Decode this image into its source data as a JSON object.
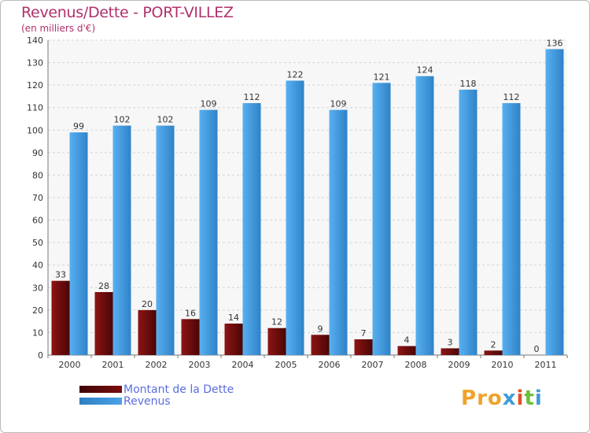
{
  "header": {
    "title": "Revenus/Dette - PORT-VILLEZ",
    "subtitle": "(en milliers d'€)"
  },
  "logo": {
    "text": "Proxiti"
  },
  "colors": {
    "dette": "#7a0c0c",
    "revenus": "#4aa3e8",
    "title": "#b0306b",
    "legend_text": "#5a6ee0",
    "grid": "#d4d4d4"
  },
  "chart_data": {
    "type": "bar",
    "categories": [
      "2000",
      "2001",
      "2002",
      "2003",
      "2004",
      "2005",
      "2006",
      "2007",
      "2008",
      "2009",
      "2010",
      "2011"
    ],
    "series": [
      {
        "name": "Montant de la Dette",
        "values": [
          33,
          28,
          20,
          16,
          14,
          12,
          9,
          7,
          4,
          3,
          2,
          0
        ]
      },
      {
        "name": "Revenus",
        "values": [
          99,
          102,
          102,
          109,
          112,
          122,
          109,
          121,
          124,
          118,
          112,
          136
        ]
      }
    ],
    "yticks": [
      0,
      10,
      20,
      30,
      40,
      50,
      60,
      70,
      80,
      90,
      100,
      110,
      120,
      130,
      140
    ],
    "ylim": [
      0,
      140
    ],
    "grid": true,
    "legend_position": "bottom-left"
  }
}
